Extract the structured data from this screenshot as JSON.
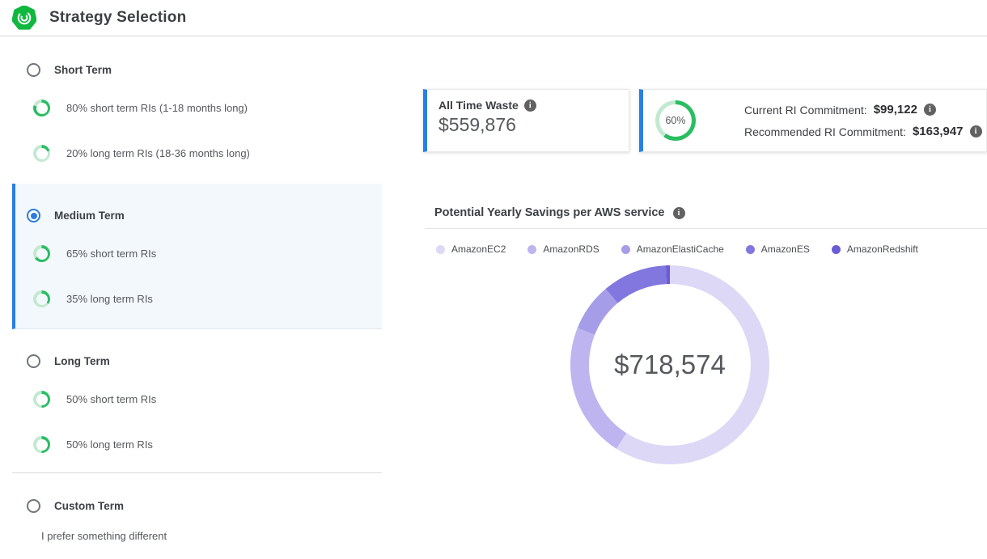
{
  "header": {
    "title": "Strategy Selection"
  },
  "colors": {
    "accent_blue": "#2b7de1",
    "card_accent_blue": "#2680ec",
    "ring_green": "#2abd62",
    "ring_green_light": "#c2e9d1",
    "panel_bg": "#f3f8fc",
    "info_icon_bg": "#616161"
  },
  "sidebar": {
    "options": [
      {
        "id": "short-term",
        "label": "Short Term",
        "selected": false,
        "items": [
          {
            "percent": 80,
            "label": "80% short term RIs (1-18 months long)"
          },
          {
            "percent": 20,
            "label": "20% long term RIs (18-36 months long)"
          }
        ]
      },
      {
        "id": "medium-term",
        "label": "Medium Term",
        "selected": true,
        "items": [
          {
            "percent": 65,
            "label": "65% short term RIs"
          },
          {
            "percent": 35,
            "label": "35% long term RIs"
          }
        ]
      },
      {
        "id": "long-term",
        "label": "Long Term",
        "selected": false,
        "items": [
          {
            "percent": 50,
            "label": "50% short term RIs"
          },
          {
            "percent": 50,
            "label": "50% long term RIs"
          }
        ]
      },
      {
        "id": "custom-term",
        "label": "Custom Term",
        "selected": false,
        "description": "I prefer something different",
        "items": []
      }
    ]
  },
  "cards": {
    "waste": {
      "title": "All Time Waste",
      "value": "$559,876"
    },
    "commitment": {
      "ring_percent": 60,
      "ring_label": "60%",
      "current_label": "Current RI Commitment:",
      "current_value": "$99,122",
      "recommended_label": "Recommended RI Commitment:",
      "recommended_value": "$163,947"
    }
  },
  "chart_data": {
    "type": "pie",
    "subtype": "donut",
    "title": "Potential Yearly Savings per AWS service",
    "center_total": "$718,574",
    "legend_position": "top",
    "series": [
      {
        "name": "AmazonEC2",
        "percent_estimate": 59,
        "value_estimate": 424000,
        "color": "#dcd8f6"
      },
      {
        "name": "AmazonRDS",
        "percent_estimate": 22,
        "value_estimate": 158000,
        "color": "#beb5f0"
      },
      {
        "name": "AmazonElastiCache",
        "percent_estimate": 7.8,
        "value_estimate": 56000,
        "color": "#a69de8"
      },
      {
        "name": "AmazonES",
        "percent_estimate": 10.5,
        "value_estimate": 75000,
        "color": "#8177df"
      },
      {
        "name": "AmazonRedshift",
        "percent_estimate": 0.7,
        "value_estimate": 5000,
        "color": "#6a5cd6"
      }
    ]
  }
}
